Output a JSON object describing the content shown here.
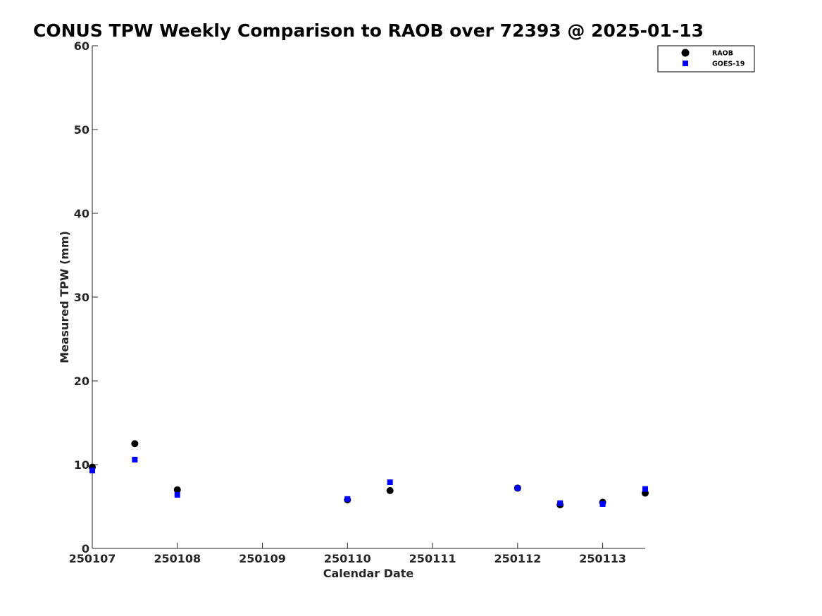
{
  "chart_data": {
    "type": "scatter",
    "title": "CONUS TPW Weekly Comparison to RAOB over 72393 @ 2025-01-13",
    "xlabel": "Calendar Date",
    "ylabel": "Measured TPW (mm)",
    "xlim": [
      250107,
      250113.5
    ],
    "ylim": [
      0,
      60
    ],
    "x_ticks": [
      250107,
      250108,
      250109,
      250110,
      250111,
      250112,
      250113
    ],
    "x_tick_labels": [
      "250107",
      "250108",
      "250109",
      "250110",
      "250111",
      "250112",
      "250113"
    ],
    "y_ticks": [
      0,
      10,
      20,
      30,
      40,
      50,
      60
    ],
    "y_tick_labels": [
      "0",
      "10",
      "20",
      "30",
      "40",
      "50",
      "60"
    ],
    "legend_position": "top-right",
    "series": [
      {
        "name": "RAOB",
        "marker": "circle",
        "color": "#000000",
        "x": [
          250107.0,
          250107.5,
          250108.0,
          250110.0,
          250110.5,
          250112.0,
          250112.5,
          250113.0,
          250113.5
        ],
        "y": [
          9.7,
          12.5,
          7.0,
          5.8,
          6.9,
          7.2,
          5.2,
          5.5,
          6.6
        ]
      },
      {
        "name": "GOES-19",
        "marker": "square",
        "color": "#0000ff",
        "x": [
          250107.0,
          250107.5,
          250108.0,
          250110.0,
          250110.5,
          250112.0,
          250112.5,
          250113.0,
          250113.5
        ],
        "y": [
          9.3,
          10.6,
          6.4,
          5.9,
          7.9,
          7.2,
          5.4,
          5.3,
          7.1
        ]
      }
    ]
  }
}
